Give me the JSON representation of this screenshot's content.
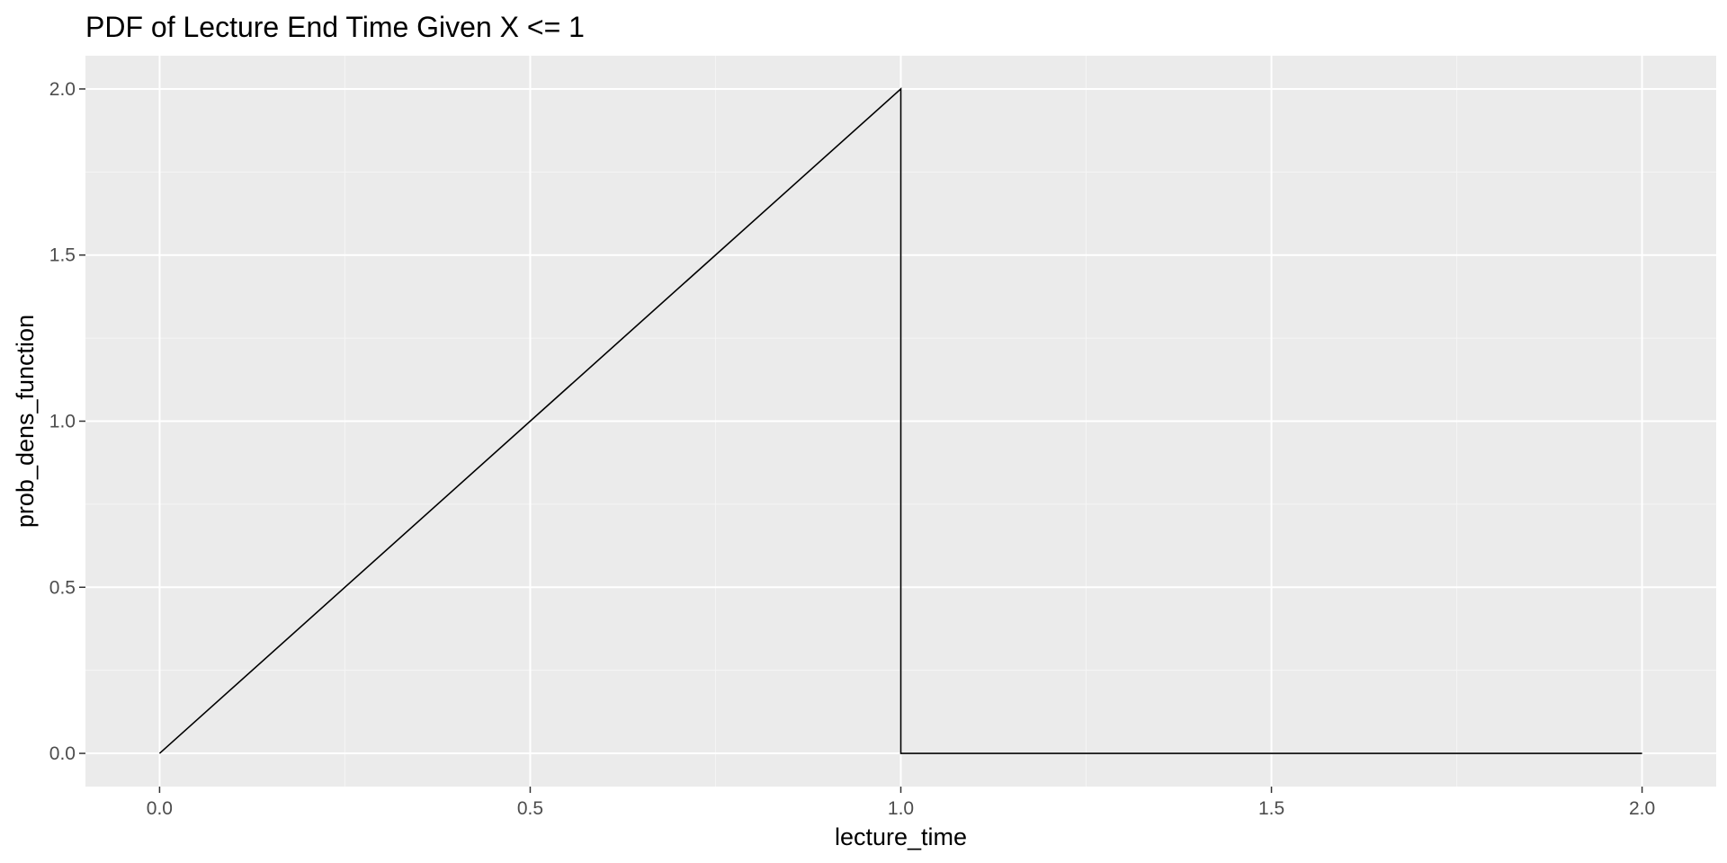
{
  "chart_data": {
    "type": "line",
    "title": "PDF of Lecture End Time Given X <= 1",
    "xlabel": "lecture_time",
    "ylabel": "prob_dens_function",
    "xlim": [
      -0.1,
      2.1
    ],
    "ylim": [
      -0.1,
      2.1
    ],
    "x_ticks": [
      {
        "value": 0.0,
        "label": "0.0"
      },
      {
        "value": 0.5,
        "label": "0.5"
      },
      {
        "value": 1.0,
        "label": "1.0"
      },
      {
        "value": 1.5,
        "label": "1.5"
      },
      {
        "value": 2.0,
        "label": "2.0"
      }
    ],
    "y_ticks": [
      {
        "value": 0.0,
        "label": "0.0"
      },
      {
        "value": 0.5,
        "label": "0.5"
      },
      {
        "value": 1.0,
        "label": "1.0"
      },
      {
        "value": 1.5,
        "label": "1.5"
      },
      {
        "value": 2.0,
        "label": "2.0"
      }
    ],
    "x_minor_ticks": [
      0.25,
      0.75,
      1.25,
      1.75
    ],
    "y_minor_ticks": [
      0.25,
      0.75,
      1.25,
      1.75
    ],
    "grid": true,
    "series": [
      {
        "x": [
          0.0,
          1.0,
          1.0,
          2.0
        ],
        "y": [
          0.0,
          2.0,
          0.0,
          0.0
        ]
      }
    ],
    "colors": {
      "panel_background": "#ebebeb",
      "grid_major": "#ffffff",
      "grid_minor": "#f5f5f5",
      "line": "#000000",
      "tick_label": "#4d4d4d",
      "tick_mark": "#333333"
    }
  }
}
